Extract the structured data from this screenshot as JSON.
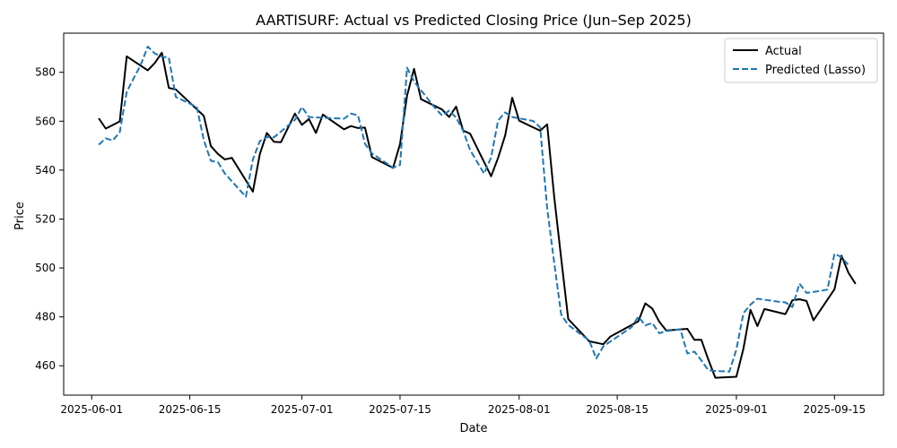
{
  "chart_data": {
    "type": "line",
    "title": "AARTISURF: Actual vs Predicted Closing Price (Jun–Sep 2025)",
    "xlabel": "Date",
    "ylabel": "Price",
    "xlim": [
      "2025-05-28",
      "2025-09-22"
    ],
    "ylim": [
      448,
      596
    ],
    "x_ticks": [
      "2025-06-01",
      "2025-06-15",
      "2025-07-01",
      "2025-07-15",
      "2025-08-01",
      "2025-08-15",
      "2025-09-01",
      "2025-09-15"
    ],
    "y_ticks": [
      460,
      480,
      500,
      520,
      540,
      560,
      580
    ],
    "grid": false,
    "legend_position": "top-right",
    "series": [
      {
        "name": "Actual",
        "color": "#000000",
        "style": "solid",
        "points": [
          [
            "2025-06-02",
            561.2
          ],
          [
            "2025-06-03",
            557.0
          ],
          [
            "2025-06-05",
            559.9
          ],
          [
            "2025-06-06",
            586.5
          ],
          [
            "2025-06-09",
            580.8
          ],
          [
            "2025-06-10",
            583.8
          ],
          [
            "2025-06-11",
            588.0
          ],
          [
            "2025-06-12",
            573.6
          ],
          [
            "2025-06-13",
            573.0
          ],
          [
            "2025-06-17",
            562.2
          ],
          [
            "2025-06-18",
            549.8
          ],
          [
            "2025-06-19",
            546.6
          ],
          [
            "2025-06-20",
            544.4
          ],
          [
            "2025-06-21",
            545.0
          ],
          [
            "2025-06-24",
            531.2
          ],
          [
            "2025-06-25",
            546.6
          ],
          [
            "2025-06-26",
            555.2
          ],
          [
            "2025-06-27",
            551.6
          ],
          [
            "2025-06-28",
            551.4
          ],
          [
            "2025-06-30",
            563.1
          ],
          [
            "2025-07-01",
            558.5
          ],
          [
            "2025-07-02",
            560.9
          ],
          [
            "2025-07-03",
            555.2
          ],
          [
            "2025-07-04",
            562.7
          ],
          [
            "2025-07-07",
            556.7
          ],
          [
            "2025-07-08",
            558.0
          ],
          [
            "2025-07-09",
            557.2
          ],
          [
            "2025-07-10",
            557.4
          ],
          [
            "2025-07-11",
            545.3
          ],
          [
            "2025-07-14",
            540.9
          ],
          [
            "2025-07-15",
            550.7
          ],
          [
            "2025-07-16",
            570.5
          ],
          [
            "2025-07-17",
            581.4
          ],
          [
            "2025-07-18",
            569.0
          ],
          [
            "2025-07-21",
            564.8
          ],
          [
            "2025-07-22",
            561.7
          ],
          [
            "2025-07-23",
            566.0
          ],
          [
            "2025-07-24",
            556.2
          ],
          [
            "2025-07-25",
            554.9
          ],
          [
            "2025-07-28",
            537.5
          ],
          [
            "2025-07-29",
            545.0
          ],
          [
            "2025-07-30",
            554.2
          ],
          [
            "2025-07-31",
            569.6
          ],
          [
            "2025-08-01",
            560.2
          ],
          [
            "2025-08-04",
            556.1
          ],
          [
            "2025-08-05",
            558.7
          ],
          [
            "2025-08-06",
            529.2
          ],
          [
            "2025-08-07",
            504.0
          ],
          [
            "2025-08-08",
            479.1
          ],
          [
            "2025-08-11",
            470.0
          ],
          [
            "2025-08-13",
            468.8
          ],
          [
            "2025-08-14",
            471.9
          ],
          [
            "2025-08-18",
            478.2
          ],
          [
            "2025-08-19",
            485.5
          ],
          [
            "2025-08-20",
            483.4
          ],
          [
            "2025-08-21",
            478.0
          ],
          [
            "2025-08-22",
            474.4
          ],
          [
            "2025-08-25",
            475.1
          ],
          [
            "2025-08-26",
            470.6
          ],
          [
            "2025-08-27",
            470.6
          ],
          [
            "2025-08-28",
            462.5
          ],
          [
            "2025-08-29",
            455.1
          ],
          [
            "2025-09-01",
            455.5
          ],
          [
            "2025-09-02",
            467.0
          ],
          [
            "2025-09-03",
            482.9
          ],
          [
            "2025-09-04",
            476.2
          ],
          [
            "2025-09-05",
            483.2
          ],
          [
            "2025-09-08",
            481.1
          ],
          [
            "2025-09-09",
            486.8
          ],
          [
            "2025-09-10",
            487.2
          ],
          [
            "2025-09-11",
            486.5
          ],
          [
            "2025-09-12",
            478.6
          ],
          [
            "2025-09-15",
            491.3
          ],
          [
            "2025-09-16",
            505.0
          ],
          [
            "2025-09-17",
            498.0
          ],
          [
            "2025-09-18",
            493.5
          ]
        ]
      },
      {
        "name": "Predicted (Lasso)",
        "color": "#1f77b4",
        "style": "dashed",
        "points": [
          [
            "2025-06-02",
            550.4
          ],
          [
            "2025-06-03",
            553.0
          ],
          [
            "2025-06-04",
            552.1
          ],
          [
            "2025-06-05",
            555.5
          ],
          [
            "2025-06-06",
            572.0
          ],
          [
            "2025-06-07",
            577.6
          ],
          [
            "2025-06-08",
            583.0
          ],
          [
            "2025-06-09",
            590.5
          ],
          [
            "2025-06-10",
            587.7
          ],
          [
            "2025-06-11",
            586.4
          ],
          [
            "2025-06-12",
            586.0
          ],
          [
            "2025-06-13",
            569.9
          ],
          [
            "2025-06-16",
            565.8
          ],
          [
            "2025-06-17",
            552.3
          ],
          [
            "2025-06-18",
            543.8
          ],
          [
            "2025-06-19",
            543.3
          ],
          [
            "2025-06-20",
            538.6
          ],
          [
            "2025-06-23",
            529.1
          ],
          [
            "2025-06-24",
            544.3
          ],
          [
            "2025-06-25",
            551.9
          ],
          [
            "2025-06-26",
            553.5
          ],
          [
            "2025-06-27",
            553.4
          ],
          [
            "2025-06-30",
            560.5
          ],
          [
            "2025-07-01",
            565.8
          ],
          [
            "2025-07-02",
            561.7
          ],
          [
            "2025-07-04",
            561.4
          ],
          [
            "2025-07-07",
            561.0
          ],
          [
            "2025-07-08",
            563.1
          ],
          [
            "2025-07-09",
            562.4
          ],
          [
            "2025-07-10",
            550.8
          ],
          [
            "2025-07-11",
            546.8
          ],
          [
            "2025-07-14",
            541.0
          ],
          [
            "2025-07-15",
            542.1
          ],
          [
            "2025-07-16",
            581.9
          ],
          [
            "2025-07-17",
            576.2
          ],
          [
            "2025-07-20",
            565.4
          ],
          [
            "2025-07-21",
            562.3
          ],
          [
            "2025-07-22",
            564.3
          ],
          [
            "2025-07-23",
            561.5
          ],
          [
            "2025-07-24",
            556.1
          ],
          [
            "2025-07-25",
            548.2
          ],
          [
            "2025-07-27",
            538.6
          ],
          [
            "2025-07-28",
            545.2
          ],
          [
            "2025-07-29",
            560.3
          ],
          [
            "2025-07-30",
            563.6
          ],
          [
            "2025-07-31",
            561.7
          ],
          [
            "2025-08-03",
            560.1
          ],
          [
            "2025-08-04",
            557.5
          ],
          [
            "2025-08-05",
            524.4
          ],
          [
            "2025-08-06",
            502.3
          ],
          [
            "2025-08-07",
            481.0
          ],
          [
            "2025-08-08",
            476.7
          ],
          [
            "2025-08-11",
            470.3
          ],
          [
            "2025-08-12",
            463.0
          ],
          [
            "2025-08-13",
            467.9
          ],
          [
            "2025-08-14",
            469.9
          ],
          [
            "2025-08-17",
            475.7
          ],
          [
            "2025-08-18",
            480.1
          ],
          [
            "2025-08-19",
            476.5
          ],
          [
            "2025-08-20",
            477.5
          ],
          [
            "2025-08-21",
            473.3
          ],
          [
            "2025-08-22",
            474.2
          ],
          [
            "2025-08-24",
            474.9
          ],
          [
            "2025-08-25",
            465.0
          ],
          [
            "2025-08-26",
            465.8
          ],
          [
            "2025-08-27",
            462.2
          ],
          [
            "2025-08-28",
            458.2
          ],
          [
            "2025-08-29",
            457.9
          ],
          [
            "2025-08-31",
            457.6
          ],
          [
            "2025-09-01",
            466.6
          ],
          [
            "2025-09-02",
            481.5
          ],
          [
            "2025-09-03",
            485.0
          ],
          [
            "2025-09-04",
            487.4
          ],
          [
            "2025-09-07",
            486.2
          ],
          [
            "2025-09-08",
            485.9
          ],
          [
            "2025-09-09",
            484.0
          ],
          [
            "2025-09-10",
            493.6
          ],
          [
            "2025-09-11",
            489.8
          ],
          [
            "2025-09-13",
            490.6
          ],
          [
            "2025-09-14",
            491.2
          ],
          [
            "2025-09-15",
            505.8
          ],
          [
            "2025-09-16",
            504.4
          ],
          [
            "2025-09-17",
            501.2
          ]
        ]
      }
    ]
  }
}
